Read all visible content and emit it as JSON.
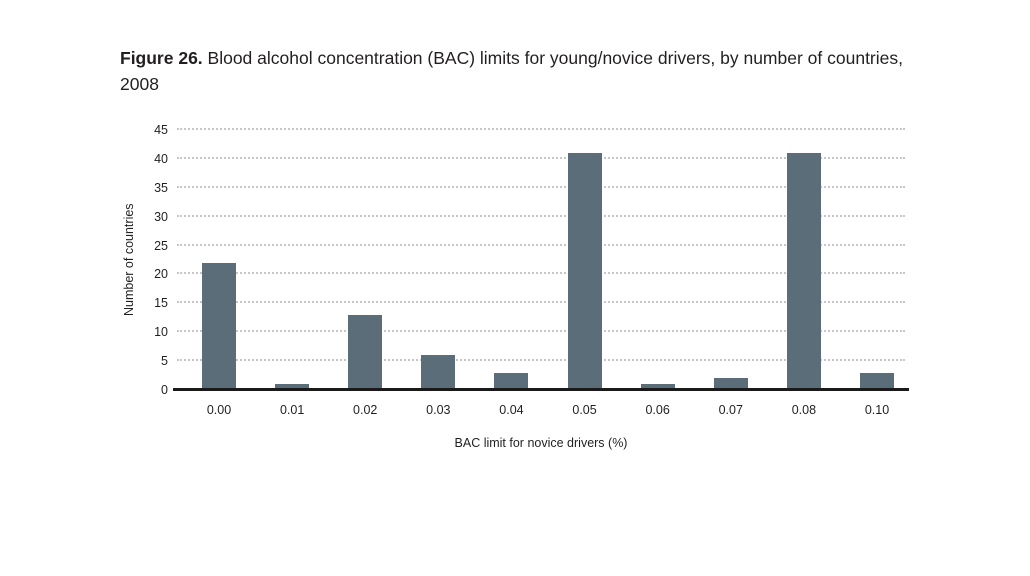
{
  "figure": {
    "title_prefix": "Figure 26.",
    "title_rest": " Blood alcohol concentration (BAC) limits for young/novice drivers, by number of countries, 2008"
  },
  "chart_data": {
    "type": "bar",
    "title": "Figure 26. Blood alcohol concentration (BAC) limits for young/novice drivers, by number of countries, 2008",
    "categories": [
      "0.00",
      "0.01",
      "0.02",
      "0.03",
      "0.04",
      "0.05",
      "0.06",
      "0.07",
      "0.08",
      "0.10"
    ],
    "values": [
      22,
      1,
      13,
      6,
      3,
      41,
      1,
      2,
      41,
      3
    ],
    "xlabel": "BAC limit for novice drivers (%)",
    "ylabel": "Number of countries",
    "ylim": [
      0,
      45
    ],
    "ytick_step": 5,
    "yticks": [
      0,
      5,
      10,
      15,
      20,
      25,
      30,
      35,
      40,
      45
    ],
    "grid": "horizontal-dotted",
    "legend": "none",
    "bar_color": "#5a6d79",
    "gridline_color": "#c7c7c7",
    "axis_color": "#1a1a1a",
    "text_color": "#231f20",
    "background_color": "#ffffff"
  }
}
